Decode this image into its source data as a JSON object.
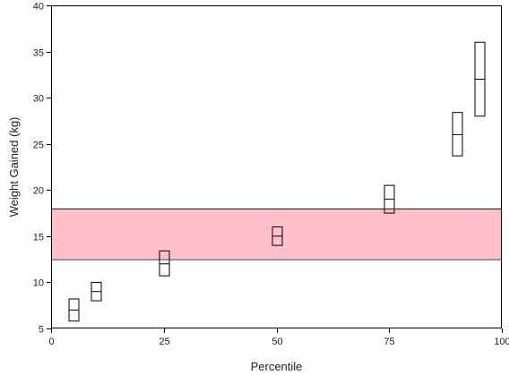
{
  "chart_data": {
    "type": "box",
    "xlabel": "Percentile",
    "ylabel": "Weight Gained (kg)",
    "xlim": [
      0,
      100
    ],
    "ylim": [
      5,
      40
    ],
    "x_ticks": [
      0,
      25,
      50,
      75,
      100
    ],
    "y_ticks": [
      5,
      10,
      15,
      20,
      25,
      30,
      35,
      40
    ],
    "reference_band": {
      "low": 12.5,
      "high": 18.0,
      "color": "#ffc0cb"
    },
    "boxes": [
      {
        "x": 5,
        "low": 5.8,
        "mid": 7.0,
        "high": 8.2
      },
      {
        "x": 10,
        "low": 8.0,
        "mid": 9.0,
        "high": 10.0
      },
      {
        "x": 25,
        "low": 10.7,
        "mid": 12.0,
        "high": 13.4
      },
      {
        "x": 50,
        "low": 14.0,
        "mid": 15.0,
        "high": 16.0
      },
      {
        "x": 75,
        "low": 17.5,
        "mid": 19.0,
        "high": 20.5
      },
      {
        "x": 90,
        "low": 23.7,
        "mid": 26.0,
        "high": 28.4
      },
      {
        "x": 95,
        "low": 28.0,
        "mid": 32.0,
        "high": 36.0
      }
    ],
    "grid": false,
    "legend": "none"
  }
}
